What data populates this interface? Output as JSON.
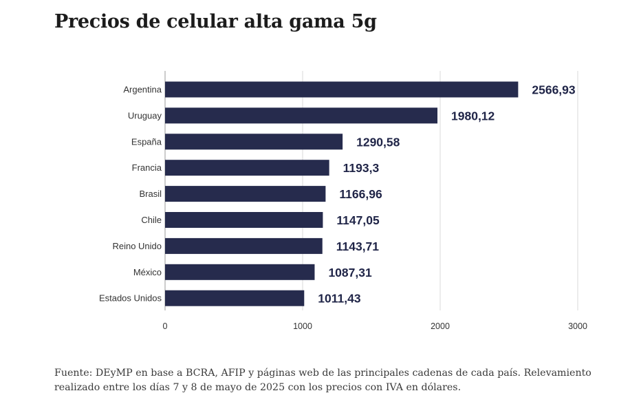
{
  "chart_data": {
    "type": "bar",
    "orientation": "horizontal",
    "title": "Precios de celular alta gama 5g",
    "categories": [
      "Argentina",
      "Uruguay",
      "España",
      "Francia",
      "Brasil",
      "Chile",
      "Reino Unido",
      "México",
      "Estados Unidos"
    ],
    "values": [
      2566.93,
      1980.12,
      1290.58,
      1193.3,
      1166.96,
      1147.05,
      1143.71,
      1087.31,
      1011.43
    ],
    "value_labels": [
      "2566,93",
      "1980,12",
      "1290,58",
      "1193,3",
      "1166,96",
      "1147,05",
      "1143,71",
      "1087,31",
      "1011,43"
    ],
    "xlim": [
      0,
      3000
    ],
    "xticks": [
      0,
      1000,
      2000,
      3000
    ],
    "xtick_labels": [
      "0",
      "1000",
      "2000",
      "3000"
    ],
    "grid": true,
    "bar_color": "#262b4d",
    "grid_color": "#d9d9d9"
  },
  "source_note": "Fuente: DEyMP en base a BCRA, AFIP y páginas web de las principales cadenas de cada país. Relevamiento realizado entre los días 7 y 8 de mayo de 2025 con los precios con IVA en dólares."
}
